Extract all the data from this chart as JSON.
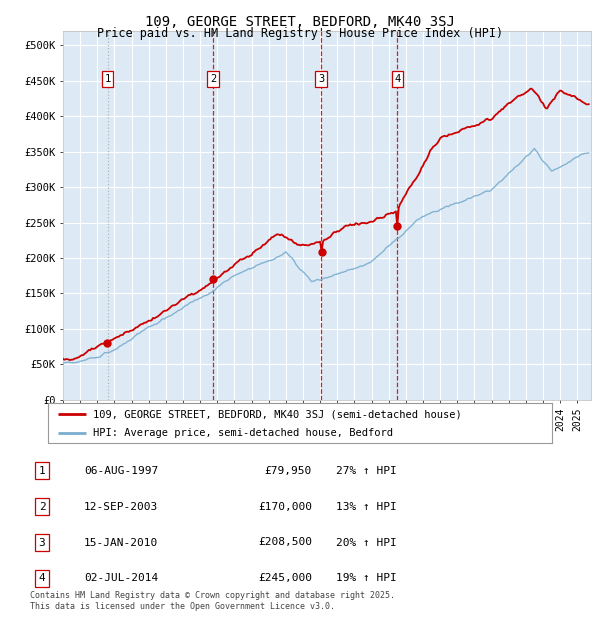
{
  "title": "109, GEORGE STREET, BEDFORD, MK40 3SJ",
  "subtitle": "Price paid vs. HM Land Registry's House Price Index (HPI)",
  "legend_line1": "109, GEORGE STREET, BEDFORD, MK40 3SJ (semi-detached house)",
  "legend_line2": "HPI: Average price, semi-detached house, Bedford",
  "footer": "Contains HM Land Registry data © Crown copyright and database right 2025.\nThis data is licensed under the Open Government Licence v3.0.",
  "transactions": [
    {
      "num": 1,
      "date": "06-AUG-1997",
      "price": 79950,
      "pct": "27%",
      "dir": "↑",
      "year": 1997.6
    },
    {
      "num": 2,
      "date": "12-SEP-2003",
      "price": 170000,
      "pct": "13%",
      "dir": "↑",
      "year": 2003.75
    },
    {
      "num": 3,
      "date": "15-JAN-2010",
      "price": 208500,
      "pct": "20%",
      "dir": "↑",
      "year": 2010.05
    },
    {
      "num": 4,
      "date": "02-JUL-2014",
      "price": 245000,
      "pct": "19%",
      "dir": "↑",
      "year": 2014.5
    }
  ],
  "price_color": "#cc0000",
  "hpi_color": "#7aadcf",
  "background_color": "#ddeaf5",
  "grid_color": "#ffffff",
  "ylim": [
    0,
    520000
  ],
  "xlim_start": 1995.0,
  "xlim_end": 2025.8,
  "yticks": [
    0,
    50000,
    100000,
    150000,
    200000,
    250000,
    300000,
    350000,
    400000,
    450000,
    500000
  ],
  "ytick_labels": [
    "£0",
    "£50K",
    "£100K",
    "£150K",
    "£200K",
    "£250K",
    "£300K",
    "£350K",
    "£400K",
    "£450K",
    "£500K"
  ]
}
